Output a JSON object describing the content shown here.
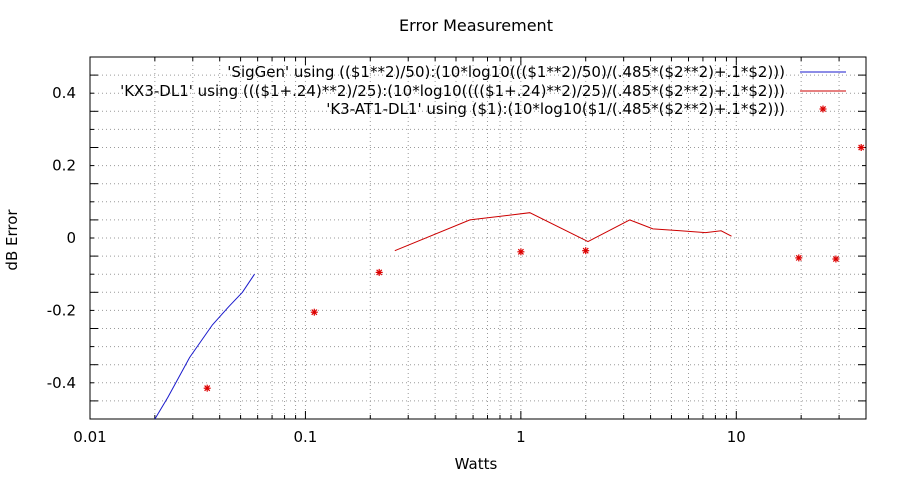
{
  "chart_data": {
    "type": "line",
    "title": "Error Measurement",
    "xlabel": "Watts",
    "ylabel": "dB Error",
    "xscale": "log",
    "xlim": [
      0.01,
      40
    ],
    "ylim": [
      -0.5,
      0.5
    ],
    "grid": true,
    "legend_position": "top-right",
    "x_ticks": [
      {
        "value": 0.01,
        "label": "0.01"
      },
      {
        "value": 0.1,
        "label": "0.1"
      },
      {
        "value": 1,
        "label": "1"
      },
      {
        "value": 10,
        "label": "10"
      }
    ],
    "y_ticks": [
      {
        "value": -0.4,
        "label": "-0.4"
      },
      {
        "value": -0.2,
        "label": "-0.2"
      },
      {
        "value": 0,
        "label": "0"
      },
      {
        "value": 0.2,
        "label": "0.2"
      },
      {
        "value": 0.4,
        "label": "0.4"
      }
    ],
    "series": [
      {
        "name": "'SigGen'  using (($1**2)/50):(10*log10((($1**2)/50)/(.485*($2**2)+.1*$2)))",
        "style": "line",
        "color": "#1a1acc",
        "points": [
          [
            0.02,
            -0.5
          ],
          [
            0.023,
            -0.44
          ],
          [
            0.029,
            -0.33
          ],
          [
            0.037,
            -0.24
          ],
          [
            0.044,
            -0.19
          ],
          [
            0.051,
            -0.15
          ],
          [
            0.058,
            -0.1
          ]
        ]
      },
      {
        "name": "'KX3-DL1' using ((($1+.24)**2)/25):(10*log10(((($1+.24)**2)/25)/(.485*($2**2)+.1*$2)))",
        "style": "line",
        "color": "#cc0000",
        "points": [
          [
            0.26,
            -0.035
          ],
          [
            0.58,
            0.05
          ],
          [
            1.1,
            0.07
          ],
          [
            2.05,
            -0.01
          ],
          [
            3.2,
            0.05
          ],
          [
            4.1,
            0.025
          ],
          [
            5.5,
            0.02
          ],
          [
            7.2,
            0.015
          ],
          [
            8.5,
            0.02
          ],
          [
            9.5,
            0.005
          ]
        ]
      },
      {
        "name": "'K3-AT1-DL1' using ($1):(10*log10($1/(.485*($2**2)+.1*$2)))",
        "style": "points",
        "marker": "*",
        "color": "#dd0000",
        "points": [
          [
            0.035,
            -0.415
          ],
          [
            0.11,
            -0.205
          ],
          [
            0.22,
            -0.095
          ],
          [
            1.0,
            -0.038
          ],
          [
            2.0,
            -0.035
          ],
          [
            19.5,
            -0.055
          ],
          [
            29,
            -0.058
          ],
          [
            38,
            0.25
          ]
        ]
      }
    ]
  }
}
